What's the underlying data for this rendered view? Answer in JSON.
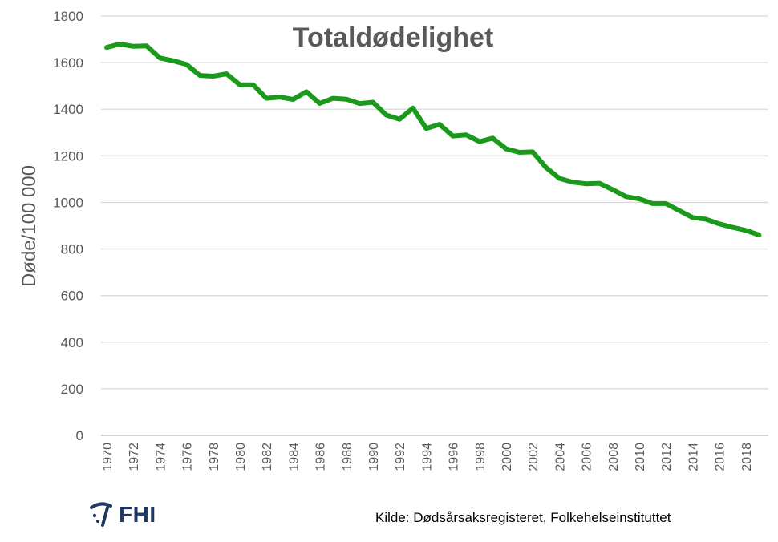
{
  "chart_data": {
    "type": "line",
    "title": "Totaldødelighet",
    "xlabel": "",
    "ylabel": "Døde/100 000",
    "ylim": [
      0,
      1800
    ],
    "yticks": [
      "0",
      "200",
      "400",
      "600",
      "800",
      "1000",
      "1200",
      "1400",
      "1600",
      "1800"
    ],
    "xlim": [
      1970,
      2019
    ],
    "xticks": [
      "1970",
      "1972",
      "1974",
      "1976",
      "1978",
      "1980",
      "1982",
      "1984",
      "1986",
      "1988",
      "1990",
      "1992",
      "1994",
      "1996",
      "1998",
      "2000",
      "2002",
      "2004",
      "2006",
      "2008",
      "2010",
      "2012",
      "2014",
      "2016",
      "2018"
    ],
    "grid": true,
    "series": [
      {
        "name": "Totaldødelighet",
        "color": "#1a9a1a",
        "x": [
          1970,
          1971,
          1972,
          1973,
          1974,
          1975,
          1976,
          1977,
          1978,
          1979,
          1980,
          1981,
          1982,
          1983,
          1984,
          1985,
          1986,
          1987,
          1988,
          1989,
          1990,
          1991,
          1992,
          1993,
          1994,
          1995,
          1996,
          1997,
          1998,
          1999,
          2000,
          2001,
          2002,
          2003,
          2004,
          2005,
          2006,
          2007,
          2008,
          2009,
          2010,
          2011,
          2012,
          2013,
          2014,
          2015,
          2016,
          2017,
          2018,
          2019
        ],
        "values": [
          1665,
          1680,
          1670,
          1672,
          1620,
          1608,
          1592,
          1545,
          1542,
          1552,
          1505,
          1505,
          1447,
          1452,
          1442,
          1475,
          1425,
          1447,
          1443,
          1424,
          1430,
          1375,
          1357,
          1405,
          1317,
          1335,
          1285,
          1290,
          1261,
          1276,
          1230,
          1215,
          1217,
          1150,
          1103,
          1087,
          1080,
          1082,
          1055,
          1025,
          1015,
          995,
          995,
          965,
          935,
          928,
          908,
          893,
          880,
          860
        ]
      }
    ]
  },
  "footer": {
    "logo_text": "FHI",
    "source": "Kilde: Dødsårsaksregisteret, Folkehelseinstituttet"
  },
  "colors": {
    "line": "#1a9a1a",
    "grid": "#d9d9d9",
    "text": "#595959",
    "logo": "#1f3864"
  }
}
